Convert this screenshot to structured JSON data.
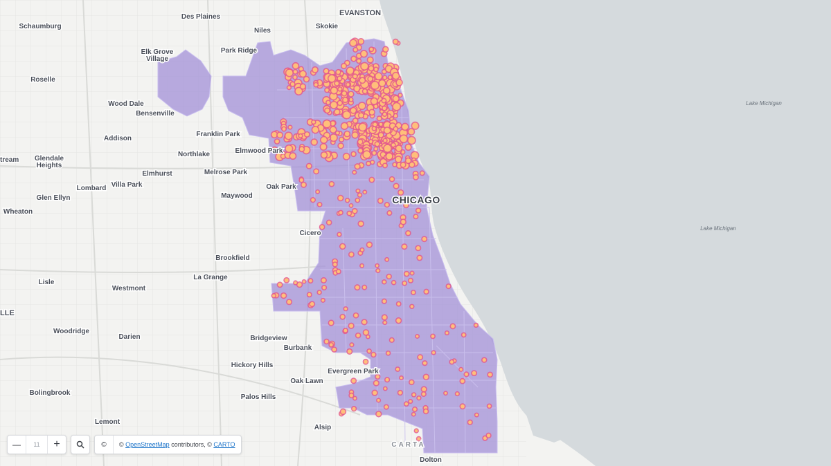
{
  "map": {
    "city_label": "CHICAGO",
    "water_labels": [
      "Lake Michigan",
      "Lake Michigan"
    ],
    "places": [
      "Des Plaines",
      "EVANSTON",
      "Schaumburg",
      "Skokie",
      "Niles",
      "Elk Grove",
      "Village",
      "Park Ridge",
      "Roselle",
      "Wood Dale",
      "Bensenville",
      "Franklin Park",
      "Addison",
      "Northlake",
      "Elmwood Park",
      "tream",
      "Glendale",
      "Heights",
      "Elmhurst",
      "Melrose Park",
      "Lombard",
      "Villa Park",
      "Oak Park",
      "Glen Ellyn",
      "Maywood",
      "Wheaton",
      "Cicero",
      "Brookfield",
      "La Grange",
      "Lisle",
      "Westmont",
      "LLE",
      "Woodridge",
      "Darien",
      "Bridgeview",
      "Burbank",
      "Hickory Hills",
      "Evergreen Park",
      "Oak Lawn",
      "Bolingbrook",
      "Palos Hills",
      "Lemont",
      "Alsip",
      "CARTA",
      "Dolton"
    ],
    "colors": {
      "land": "#f3f3f1",
      "water": "#d5dadd",
      "region_fill": "#a594d9",
      "region_stroke": "#c8bdef",
      "hotspot_outer": "#e45a8c",
      "hotspot_inner": "#ffbf7a"
    }
  },
  "controls": {
    "zoom_out_symbol": "—",
    "zoom_level": "11",
    "zoom_in_symbol": "+",
    "search_icon": "🔍",
    "attribution_icon": "©",
    "attribution_prefix": "© ",
    "attribution_link_osm": "OpenStreetMap",
    "attribution_middle": " contributors, © ",
    "attribution_link_carto": "CARTO"
  }
}
